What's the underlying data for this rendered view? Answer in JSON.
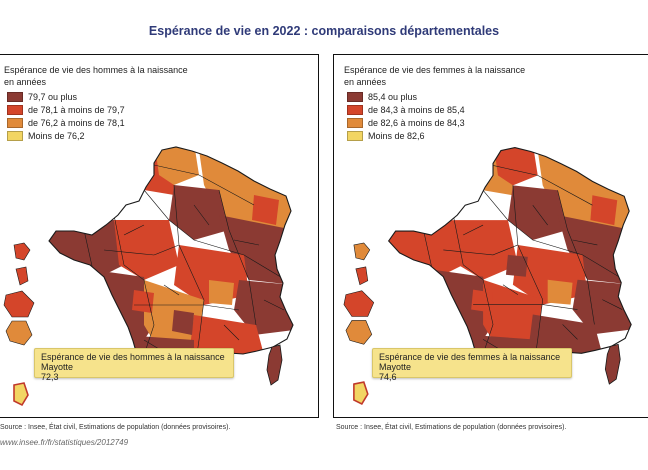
{
  "title": "Espérance de vie en 2022 : comparaisons départementales",
  "colors": {
    "class1": "#8b3a33",
    "class2": "#d4452a",
    "class3": "#e08a3a",
    "class4": "#f2d563",
    "border": "#1a1a1a",
    "tooltip_bg": "#f6e38c"
  },
  "men_map": {
    "legend_title_line1": "Espérance de vie des hommes à la naissance",
    "legend_title_line2": "en années",
    "legend": [
      {
        "label": "79,7 ou plus",
        "color": "#8b3a33"
      },
      {
        "label": "de 78,1 à moins de 79,7",
        "color": "#d4452a"
      },
      {
        "label": "de 76,2 à moins de 78,1",
        "color": "#e08a3a"
      },
      {
        "label": "Moins de 76,2",
        "color": "#f2d563"
      }
    ],
    "tooltip": {
      "line1": "Espérance de vie des hommes à la naissance",
      "line2": "Mayotte",
      "value": "72,3"
    },
    "source": "Source : Insee, État civil, Estimations de population (données provisoires)."
  },
  "women_map": {
    "legend_title_line1": "Espérance de vie des femmes à la naissance",
    "legend_title_line2": "en années",
    "legend": [
      {
        "label": "85,4 ou plus",
        "color": "#8b3a33"
      },
      {
        "label": "de 84,3 à moins de 85,4",
        "color": "#d4452a"
      },
      {
        "label": "de 82,6 à moins de 84,3",
        "color": "#e08a3a"
      },
      {
        "label": "Moins de 82,6",
        "color": "#f2d563"
      }
    ],
    "tooltip": {
      "line1": "Espérance de vie des femmes à la naissance",
      "line2": "Mayotte",
      "value": "74,6"
    },
    "source": "Source : Insee, État civil, Estimations de population (données provisoires)."
  },
  "url": "www.insee.fr/fr/statistiques/2012749"
}
